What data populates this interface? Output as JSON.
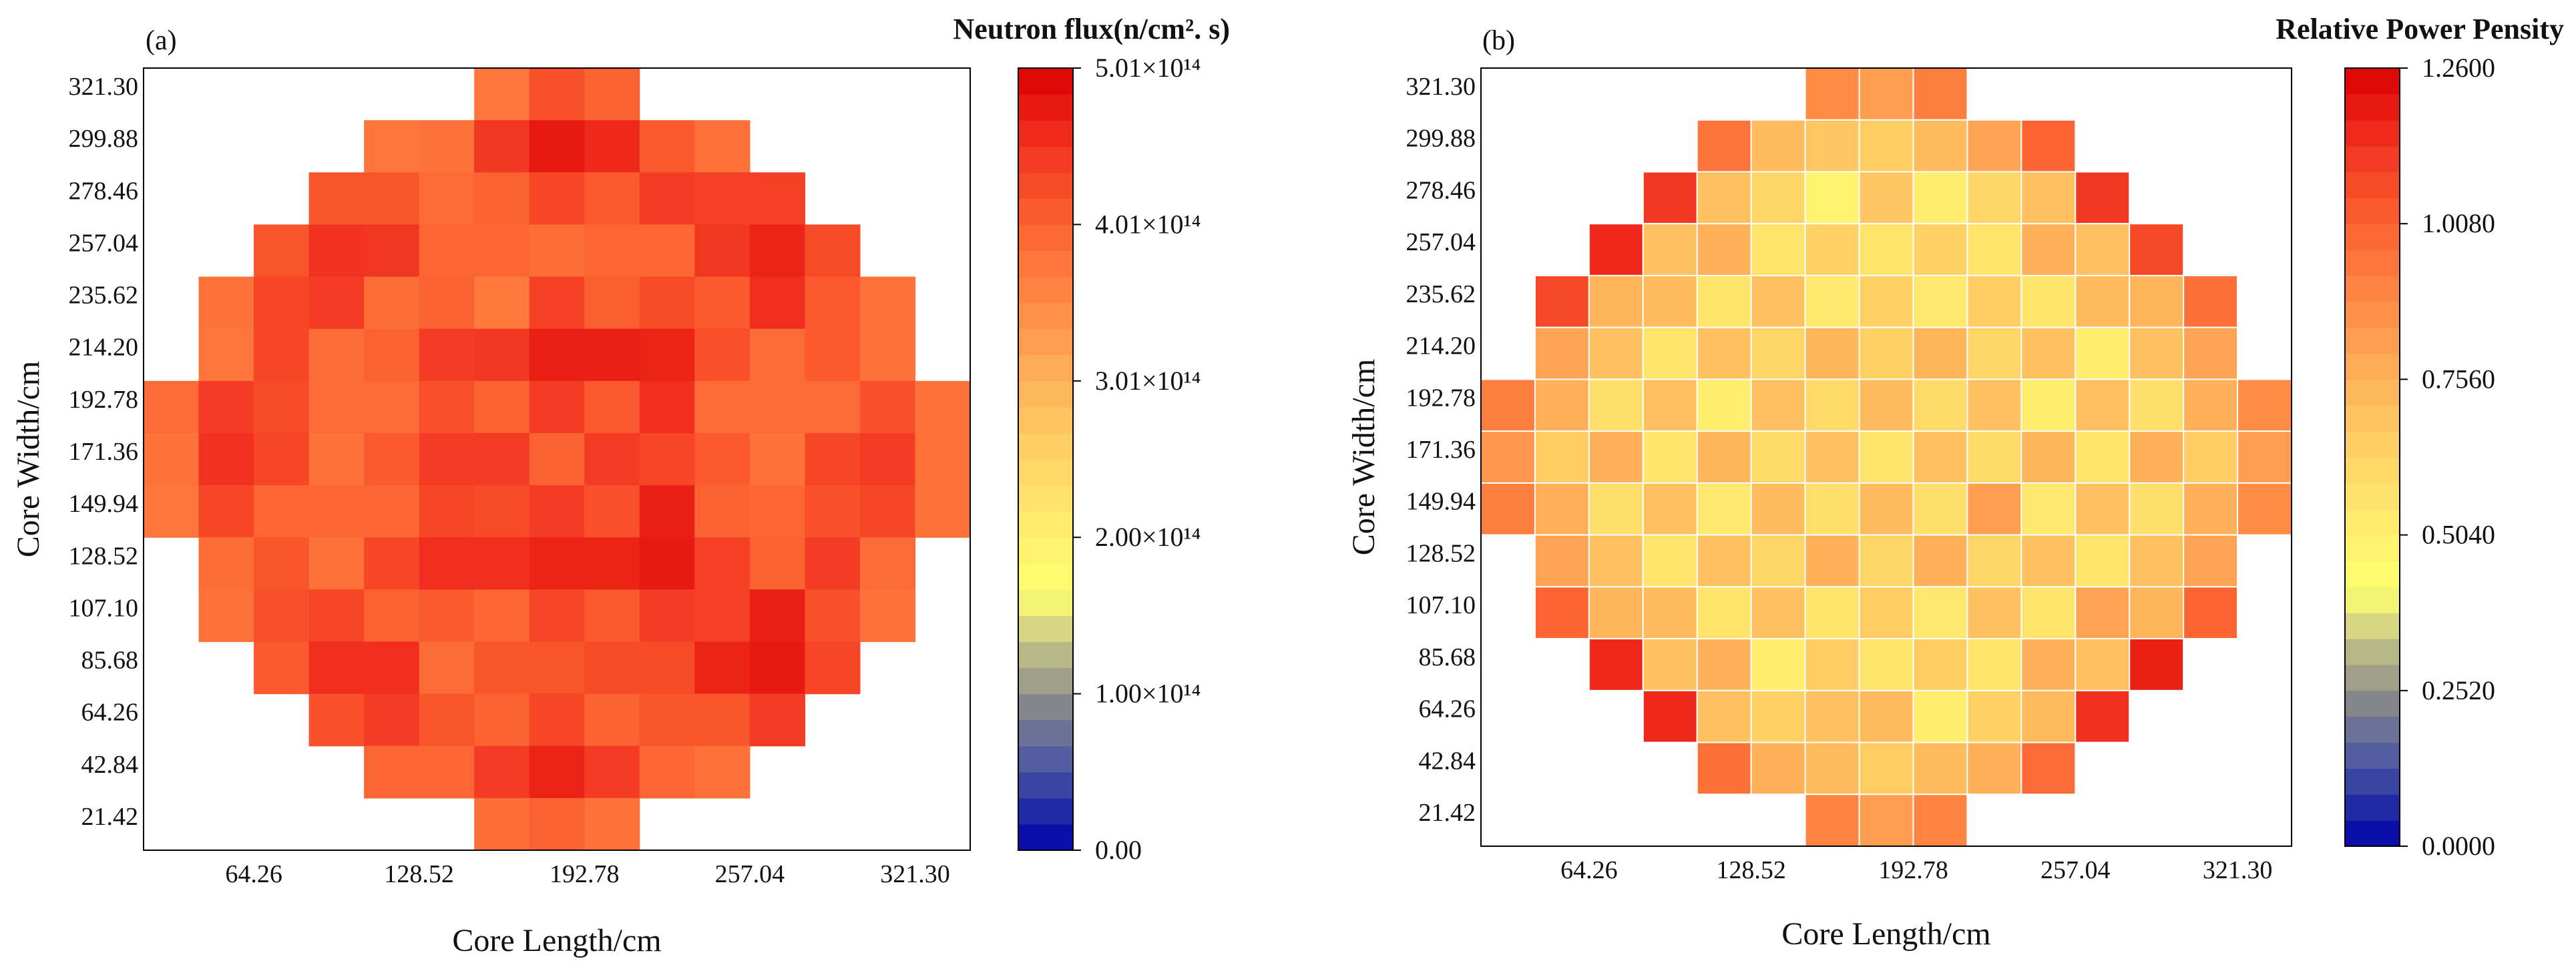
{
  "chart_data": [
    {
      "type": "heatmap",
      "panel_label": "(a)",
      "title": "Neutron flux(n/cm². s)",
      "xlabel": "Core Length/cm",
      "ylabel": "Core Width/cm",
      "x_tick_labels": [
        "64.26",
        "128.52",
        "192.78",
        "257.04",
        "321.30"
      ],
      "y_tick_labels": [
        "321.30",
        "299.88",
        "278.46",
        "257.04",
        "235.62",
        "214.20",
        "192.78",
        "171.36",
        "149.94",
        "128.52",
        "107.10",
        "85.68",
        "64.26",
        "42.84",
        "21.42"
      ],
      "colorbar": {
        "min": 0.0,
        "max": 501000000000000.0,
        "tick_labels": [
          "5.01×10¹⁴",
          "4.01×10¹⁴",
          "3.01×10¹⁴",
          "2.00×10¹⁴",
          "1.00×10¹⁴",
          "0.00"
        ]
      },
      "grid_lines": false,
      "values_note": "Rows top (y=321.30) to bottom (y=21.42); values relative to colorbar max (null = empty cell).",
      "values": [
        [
          null,
          null,
          null,
          null,
          null,
          null,
          0.75,
          0.84,
          0.8,
          null,
          null,
          null,
          null,
          null,
          null
        ],
        [
          null,
          null,
          null,
          null,
          0.75,
          0.76,
          0.89,
          0.95,
          0.92,
          0.82,
          0.76,
          null,
          null,
          null,
          null
        ],
        [
          null,
          null,
          null,
          0.83,
          0.83,
          0.78,
          0.8,
          0.86,
          0.82,
          0.88,
          0.87,
          0.87,
          null,
          null,
          null
        ],
        [
          null,
          null,
          0.83,
          0.9,
          0.89,
          0.79,
          0.79,
          0.77,
          0.79,
          0.79,
          0.89,
          0.93,
          0.85,
          null,
          null
        ],
        [
          null,
          0.76,
          0.86,
          0.88,
          0.77,
          0.8,
          0.74,
          0.87,
          0.81,
          0.85,
          0.82,
          0.91,
          0.82,
          0.76,
          null
        ],
        [
          null,
          0.75,
          0.86,
          0.78,
          0.8,
          0.88,
          0.89,
          0.94,
          0.94,
          0.93,
          0.84,
          0.78,
          0.82,
          0.76,
          null
        ],
        [
          0.78,
          0.88,
          0.85,
          0.78,
          0.78,
          0.84,
          0.8,
          0.88,
          0.82,
          0.91,
          0.78,
          0.78,
          0.78,
          0.84,
          0.76
        ],
        [
          0.76,
          0.9,
          0.86,
          0.76,
          0.82,
          0.88,
          0.88,
          0.8,
          0.88,
          0.86,
          0.82,
          0.76,
          0.86,
          0.88,
          0.76
        ],
        [
          0.75,
          0.86,
          0.79,
          0.79,
          0.79,
          0.86,
          0.85,
          0.88,
          0.84,
          0.94,
          0.8,
          0.79,
          0.84,
          0.86,
          0.76
        ],
        [
          null,
          0.77,
          0.83,
          0.76,
          0.86,
          0.91,
          0.91,
          0.93,
          0.93,
          0.95,
          0.87,
          0.8,
          0.88,
          0.78,
          null
        ],
        [
          null,
          0.76,
          0.84,
          0.86,
          0.8,
          0.82,
          0.79,
          0.86,
          0.82,
          0.88,
          0.87,
          0.94,
          0.84,
          0.76,
          null
        ],
        [
          null,
          null,
          0.82,
          0.91,
          0.91,
          0.78,
          0.83,
          0.83,
          0.85,
          0.85,
          0.93,
          0.95,
          0.86,
          null,
          null
        ],
        [
          null,
          null,
          null,
          0.84,
          0.88,
          0.83,
          0.8,
          0.86,
          0.8,
          0.83,
          0.83,
          0.88,
          null,
          null,
          null
        ],
        [
          null,
          null,
          null,
          null,
          0.79,
          0.79,
          0.88,
          0.93,
          0.88,
          0.79,
          0.76,
          null,
          null,
          null,
          null
        ],
        [
          null,
          null,
          null,
          null,
          null,
          null,
          0.77,
          0.8,
          0.76,
          null,
          null,
          null,
          null,
          null,
          null
        ]
      ]
    },
    {
      "type": "heatmap",
      "panel_label": "(b)",
      "title": "Relative Power Pensity",
      "xlabel": "Core Length/cm",
      "ylabel": "Core Width/cm",
      "x_tick_labels": [
        "64.26",
        "128.52",
        "192.78",
        "257.04",
        "321.30"
      ],
      "y_tick_labels": [
        "321.30",
        "299.88",
        "278.46",
        "257.04",
        "235.62",
        "214.20",
        "192.78",
        "171.36",
        "149.94",
        "128.52",
        "107.10",
        "85.68",
        "64.26",
        "42.84",
        "21.42"
      ],
      "colorbar": {
        "min": 0.0,
        "max": 1.26,
        "tick_labels": [
          "1.2600",
          "1.0080",
          "0.7560",
          "0.5040",
          "0.2520",
          "0.0000"
        ]
      },
      "grid_lines": true,
      "values_note": "Rows top (y=321.30) to bottom (y=21.42); relative power values (null = empty cell).",
      "values": [
        [
          null,
          null,
          null,
          null,
          null,
          null,
          0.88,
          0.82,
          0.92,
          null,
          null,
          null,
          null,
          null,
          null
        ],
        [
          null,
          null,
          null,
          null,
          0.95,
          0.72,
          0.68,
          0.66,
          0.72,
          0.8,
          1.0,
          null,
          null,
          null,
          null
        ],
        [
          null,
          null,
          null,
          1.12,
          0.7,
          0.62,
          0.48,
          0.68,
          0.52,
          0.62,
          0.7,
          1.12,
          null,
          null,
          null
        ],
        [
          null,
          null,
          1.16,
          0.7,
          0.76,
          0.56,
          0.64,
          0.56,
          0.64,
          0.56,
          0.76,
          0.7,
          1.08,
          null,
          null
        ],
        [
          null,
          1.08,
          0.74,
          0.72,
          0.56,
          0.7,
          0.54,
          0.64,
          0.54,
          0.66,
          0.56,
          0.72,
          0.74,
          0.96,
          null
        ],
        [
          null,
          0.8,
          0.7,
          0.56,
          0.7,
          0.62,
          0.74,
          0.64,
          0.74,
          0.62,
          0.7,
          0.52,
          0.7,
          0.8,
          null
        ],
        [
          0.92,
          0.76,
          0.58,
          0.7,
          0.52,
          0.7,
          0.6,
          0.72,
          0.6,
          0.7,
          0.52,
          0.7,
          0.58,
          0.76,
          0.88
        ],
        [
          0.84,
          0.66,
          0.76,
          0.56,
          0.74,
          0.6,
          0.7,
          0.56,
          0.7,
          0.6,
          0.74,
          0.56,
          0.76,
          0.66,
          0.82
        ],
        [
          0.92,
          0.76,
          0.58,
          0.7,
          0.54,
          0.72,
          0.58,
          0.72,
          0.58,
          0.82,
          0.54,
          0.7,
          0.58,
          0.76,
          0.88
        ],
        [
          null,
          0.8,
          0.7,
          0.56,
          0.7,
          0.62,
          0.76,
          0.62,
          0.76,
          0.62,
          0.7,
          0.56,
          0.7,
          0.8,
          null
        ],
        [
          null,
          1.0,
          0.74,
          0.72,
          0.56,
          0.7,
          0.56,
          0.66,
          0.54,
          0.7,
          0.56,
          0.8,
          0.74,
          1.0,
          null
        ],
        [
          null,
          null,
          1.16,
          0.7,
          0.76,
          0.52,
          0.66,
          0.56,
          0.66,
          0.56,
          0.76,
          0.7,
          1.18,
          null,
          null
        ],
        [
          null,
          null,
          null,
          1.16,
          0.7,
          0.64,
          0.7,
          0.72,
          0.52,
          0.64,
          0.72,
          1.14,
          null,
          null,
          null
        ],
        [
          null,
          null,
          null,
          null,
          0.96,
          0.76,
          0.72,
          0.66,
          0.72,
          0.76,
          0.98,
          null,
          null,
          null,
          null
        ],
        [
          null,
          null,
          null,
          null,
          null,
          null,
          0.9,
          0.82,
          0.9,
          null,
          null,
          null,
          null,
          null,
          null
        ]
      ]
    }
  ]
}
